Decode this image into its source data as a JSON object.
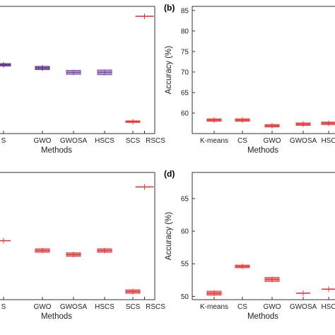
{
  "chart_data": [
    {
      "panel_label": "",
      "type": "box",
      "categories": [
        "S",
        "GWO",
        "GWOSA",
        "HSCS",
        "SCS",
        "RSCS"
      ],
      "values": [
        71.3,
        70.5,
        69.4,
        69.4,
        57.0,
        83.5
      ],
      "spread": [
        0.3,
        0.4,
        0.5,
        0.6,
        0.2,
        0.1
      ],
      "colors": [
        "#5b2b86",
        "#5b2b86",
        "#7b4cb0",
        "#7b4cb0",
        "#e23b3b",
        "#e23b3b"
      ],
      "xlabel": "Methods",
      "ylabel": "",
      "ylim": [
        54,
        86
      ],
      "yticks": [],
      "grid": false
    },
    {
      "panel_label": "(b)",
      "type": "box",
      "categories": [
        "K-means",
        "CS",
        "GWO",
        "GWOSA",
        "HSC"
      ],
      "values": [
        58.3,
        58.3,
        56.9,
        57.3,
        57.5
      ],
      "spread": [
        0.3,
        0.3,
        0.3,
        0.3,
        0.3
      ],
      "colors": [
        "#e23b3b",
        "#e23b3b",
        "#e23b3b",
        "#e23b3b",
        "#e23b3b"
      ],
      "xlabel": "Methods",
      "ylabel": "Accuracy (%)",
      "ylim": [
        55,
        86
      ],
      "yticks": [
        60,
        65,
        70,
        75,
        80,
        85
      ],
      "grid": false
    },
    {
      "panel_label": "",
      "type": "box",
      "categories": [
        "S",
        "GWO",
        "GWOSA",
        "HSCS",
        "SCS",
        "RSCS"
      ],
      "values": [
        58.2,
        56.5,
        55.8,
        56.5,
        49.4,
        67.5
      ],
      "spread": [
        0.1,
        0.3,
        0.3,
        0.3,
        0.3,
        0.1
      ],
      "colors": [
        "#e23b3b",
        "#e23b3b",
        "#e23b3b",
        "#e23b3b",
        "#e23b3b",
        "#e23b3b"
      ],
      "xlabel": "Methods",
      "ylabel": "",
      "ylim": [
        48,
        70
      ],
      "yticks": [],
      "grid": false
    },
    {
      "panel_label": "(d)",
      "type": "box",
      "categories": [
        "K-means",
        "CS",
        "GWO",
        "GWOSA",
        "HSC"
      ],
      "values": [
        50.5,
        54.6,
        52.6,
        50.5,
        51.1
      ],
      "spread": [
        0.3,
        0.2,
        0.3,
        0.1,
        0.1
      ],
      "colors": [
        "#e23b3b",
        "#e23b3b",
        "#e23b3b",
        "#e23b3b",
        "#e23b3b"
      ],
      "xlabel": "Methods",
      "ylabel": "Accuracy (%)",
      "ylim": [
        49.5,
        69
      ],
      "yticks": [
        50,
        55,
        60,
        65
      ],
      "grid": false
    }
  ]
}
